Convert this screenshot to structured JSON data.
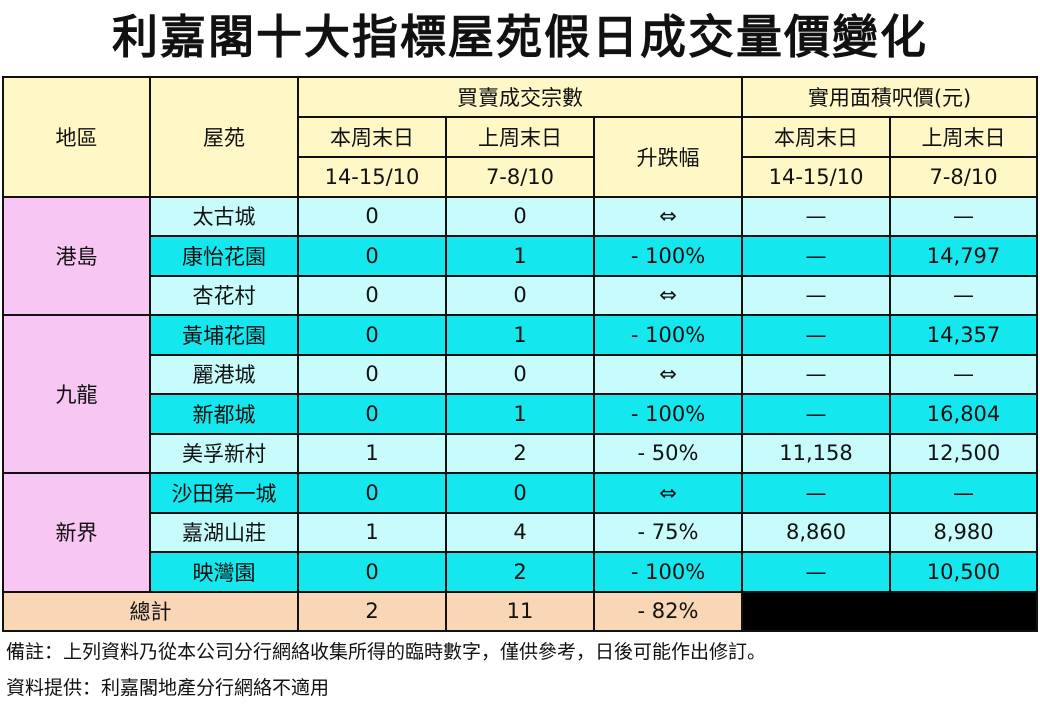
{
  "title": "利嘉閣十大指標屋苑假日成交量價變化",
  "header": {
    "district": "地區",
    "estate": "屋苑",
    "transactions_group": "買賣成交宗數",
    "price_group": "實用面積呎價(元)",
    "this_weekend": "本周末日",
    "this_weekend_dates": "14-15/10",
    "last_weekend": "上周末日",
    "last_weekend_dates": "7-8/10",
    "change": "升跌幅",
    "price_this_weekend": "本周末日",
    "price_this_weekend_dates": "14-15/10",
    "price_last_weekend": "上周末日",
    "price_last_weekend_dates": "7-8/10"
  },
  "districts": [
    {
      "name": "港島"
    },
    {
      "name": "九龍"
    },
    {
      "name": "新界"
    }
  ],
  "rows": [
    {
      "estate": "太古城",
      "this_tx": "0",
      "last_tx": "0",
      "change": "⇔",
      "this_price": "—",
      "last_price": "—"
    },
    {
      "estate": "康怡花園",
      "this_tx": "0",
      "last_tx": "1",
      "change": "- 100%",
      "this_price": "—",
      "last_price": "14,797"
    },
    {
      "estate": "杏花村",
      "this_tx": "0",
      "last_tx": "0",
      "change": "⇔",
      "this_price": "—",
      "last_price": "—"
    },
    {
      "estate": "黃埔花園",
      "this_tx": "0",
      "last_tx": "1",
      "change": "- 100%",
      "this_price": "—",
      "last_price": "14,357"
    },
    {
      "estate": "麗港城",
      "this_tx": "0",
      "last_tx": "0",
      "change": "⇔",
      "this_price": "—",
      "last_price": "—"
    },
    {
      "estate": "新都城",
      "this_tx": "0",
      "last_tx": "1",
      "change": "- 100%",
      "this_price": "—",
      "last_price": "16,804"
    },
    {
      "estate": "美孚新村",
      "this_tx": "1",
      "last_tx": "2",
      "change": "- 50%",
      "this_price": "11,158",
      "last_price": "12,500"
    },
    {
      "estate": "沙田第一城",
      "this_tx": "0",
      "last_tx": "0",
      "change": "⇔",
      "this_price": "—",
      "last_price": "—"
    },
    {
      "estate": "嘉湖山莊",
      "this_tx": "1",
      "last_tx": "4",
      "change": "- 75%",
      "this_price": "8,860",
      "last_price": "8,980"
    },
    {
      "estate": "映灣園",
      "this_tx": "0",
      "last_tx": "2",
      "change": "- 100%",
      "this_price": "—",
      "last_price": "10,500"
    }
  ],
  "total": {
    "label": "總計",
    "this_tx": "2",
    "last_tx": "11",
    "change": "- 82%"
  },
  "notes": {
    "remark": "備註：上列資料乃從本公司分行網絡收集所得的臨時數字，僅供參考，日後可能作出修訂。",
    "source": "資料提供：利嘉閣地產分行網絡不適用"
  },
  "colors": {
    "header_bg": "#fff8c6",
    "district_bg": "#f7c6f2",
    "row_light": "#c8fbfc",
    "row_dark": "#14e7ee",
    "total_bg": "#f9d6b5"
  }
}
